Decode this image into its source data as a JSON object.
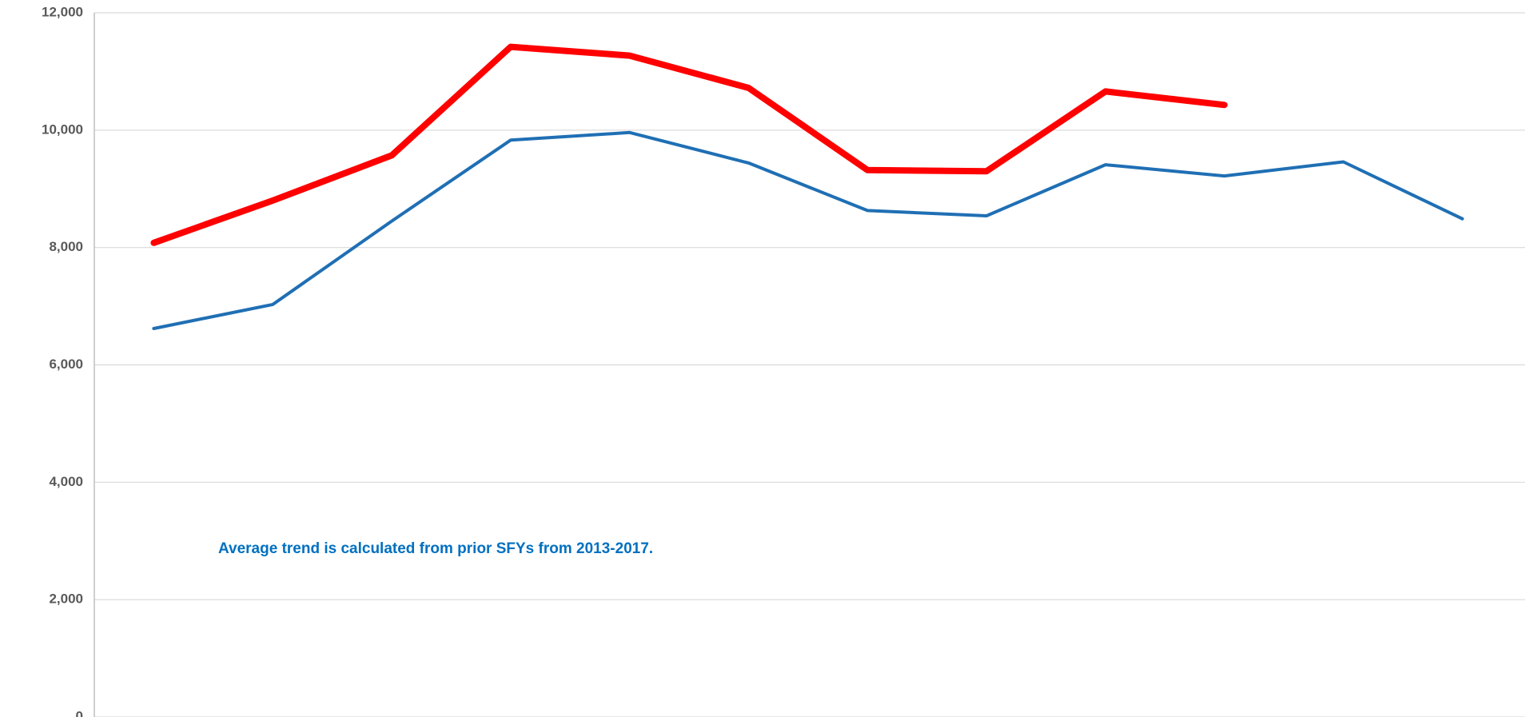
{
  "chart_data": {
    "type": "line",
    "categories": [
      null,
      null,
      null,
      null,
      null,
      null,
      null,
      null,
      null,
      null,
      null,
      null
    ],
    "series": [
      {
        "color": "#1f6fb4",
        "values": [
          6620,
          7030,
          8450,
          9830,
          9960,
          9440,
          8630,
          8540,
          9410,
          9220,
          9460,
          8490
        ]
      },
      {
        "color": "#ff0000",
        "values": [
          8080,
          8800,
          9570,
          11420,
          11270,
          10720,
          9320,
          9300,
          10660,
          10430,
          null,
          null
        ]
      }
    ],
    "annotation": "Average trend is calculated from prior SFYs from 2013-2017.",
    "ylim": [
      0,
      12000
    ],
    "yticks": [
      0,
      {
        "value": 2000,
        "label": "2,000"
      },
      {
        "value": 4000,
        "label": "4,000"
      },
      {
        "value": 6000,
        "label": "6,000"
      },
      {
        "value": 8000,
        "label": "8,000"
      },
      {
        "value": 10000,
        "label": "10,000"
      },
      {
        "value": 12000,
        "label": "12,000"
      }
    ],
    "grid": true
  }
}
